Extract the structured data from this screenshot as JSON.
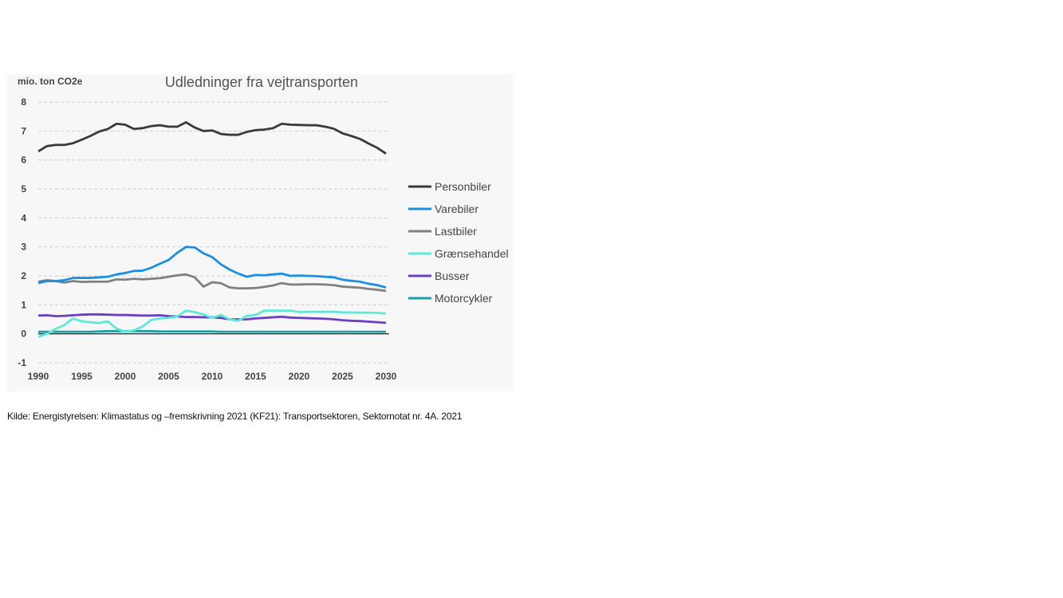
{
  "chart_data": {
    "type": "line",
    "title": "Udledninger fra vejtransporten",
    "ylabel": "mio. ton CO2e",
    "xlabel": "",
    "ylim": [
      -1,
      8
    ],
    "xlim": [
      1990,
      2030
    ],
    "yticks": [
      8,
      7,
      6,
      5,
      4,
      3,
      2,
      1,
      0,
      -1
    ],
    "xticks": [
      1990,
      1995,
      2000,
      2005,
      2010,
      2015,
      2020,
      2025,
      2030
    ],
    "grid": "horizontal dashed",
    "legend_position": "right",
    "x": [
      1990,
      1991,
      1992,
      1993,
      1994,
      1995,
      1996,
      1997,
      1998,
      1999,
      2000,
      2001,
      2002,
      2003,
      2004,
      2005,
      2006,
      2007,
      2008,
      2009,
      2010,
      2011,
      2012,
      2013,
      2014,
      2015,
      2016,
      2017,
      2018,
      2019,
      2020,
      2021,
      2022,
      2023,
      2024,
      2025,
      2026,
      2027,
      2028,
      2029,
      2030
    ],
    "series": [
      {
        "name": "Personbiler",
        "color": "#3a3a3a",
        "values": [
          6.3,
          6.48,
          6.52,
          6.52,
          6.58,
          6.7,
          6.83,
          6.98,
          7.07,
          7.25,
          7.22,
          7.07,
          7.1,
          7.17,
          7.2,
          7.15,
          7.15,
          7.3,
          7.12,
          7.0,
          7.02,
          6.9,
          6.87,
          6.87,
          6.97,
          7.03,
          7.05,
          7.1,
          7.25,
          7.22,
          7.21,
          7.2,
          7.2,
          7.15,
          7.08,
          6.92,
          6.83,
          6.73,
          6.57,
          6.42,
          6.22
        ]
      },
      {
        "name": "Varebiler",
        "color": "#1a8fe3",
        "values": [
          1.75,
          1.82,
          1.82,
          1.85,
          1.93,
          1.93,
          1.93,
          1.95,
          1.97,
          2.05,
          2.1,
          2.17,
          2.18,
          2.28,
          2.42,
          2.55,
          2.8,
          3.0,
          2.98,
          2.78,
          2.65,
          2.4,
          2.22,
          2.08,
          1.97,
          2.03,
          2.02,
          2.05,
          2.08,
          2.0,
          2.01,
          2.0,
          1.99,
          1.97,
          1.95,
          1.87,
          1.83,
          1.8,
          1.73,
          1.68,
          1.6
        ]
      },
      {
        "name": "Lastbiler",
        "color": "#808080",
        "values": [
          1.8,
          1.85,
          1.82,
          1.77,
          1.82,
          1.79,
          1.8,
          1.8,
          1.8,
          1.88,
          1.87,
          1.9,
          1.88,
          1.9,
          1.92,
          1.97,
          2.02,
          2.05,
          1.95,
          1.63,
          1.78,
          1.75,
          1.6,
          1.57,
          1.57,
          1.58,
          1.62,
          1.67,
          1.75,
          1.7,
          1.7,
          1.71,
          1.71,
          1.7,
          1.68,
          1.63,
          1.61,
          1.59,
          1.55,
          1.52,
          1.48
        ]
      },
      {
        "name": "Grænsehandel",
        "color": "#5ee8d8",
        "values": [
          -0.1,
          0.0,
          0.17,
          0.3,
          0.53,
          0.43,
          0.4,
          0.37,
          0.43,
          0.18,
          0.07,
          0.12,
          0.25,
          0.48,
          0.53,
          0.55,
          0.6,
          0.8,
          0.75,
          0.67,
          0.55,
          0.65,
          0.5,
          0.45,
          0.62,
          0.65,
          0.8,
          0.8,
          0.8,
          0.8,
          0.75,
          0.76,
          0.76,
          0.76,
          0.76,
          0.74,
          0.74,
          0.73,
          0.73,
          0.72,
          0.7
        ]
      },
      {
        "name": "Busser",
        "color": "#6a3fc4",
        "values": [
          0.63,
          0.64,
          0.61,
          0.62,
          0.64,
          0.66,
          0.67,
          0.67,
          0.66,
          0.65,
          0.65,
          0.64,
          0.63,
          0.63,
          0.64,
          0.61,
          0.6,
          0.58,
          0.58,
          0.57,
          0.57,
          0.55,
          0.5,
          0.5,
          0.5,
          0.53,
          0.55,
          0.57,
          0.59,
          0.56,
          0.55,
          0.54,
          0.53,
          0.52,
          0.5,
          0.47,
          0.45,
          0.44,
          0.42,
          0.4,
          0.38
        ]
      },
      {
        "name": "Motorcykler",
        "color": "#1a9ea8",
        "values": [
          0.07,
          0.07,
          0.07,
          0.07,
          0.07,
          0.07,
          0.07,
          0.08,
          0.09,
          0.09,
          0.09,
          0.09,
          0.09,
          0.09,
          0.08,
          0.08,
          0.08,
          0.08,
          0.08,
          0.08,
          0.08,
          0.07,
          0.07,
          0.07,
          0.07,
          0.07,
          0.07,
          0.07,
          0.07,
          0.07,
          0.07,
          0.07,
          0.07,
          0.07,
          0.07,
          0.07,
          0.07,
          0.07,
          0.07,
          0.07,
          0.07
        ]
      }
    ]
  },
  "source": "Kilde: Energistyrelsen: Klimastatus og –fremskrivning 2021 (KF21): Transportsektoren, Sektornotat nr. 4A. 2021"
}
